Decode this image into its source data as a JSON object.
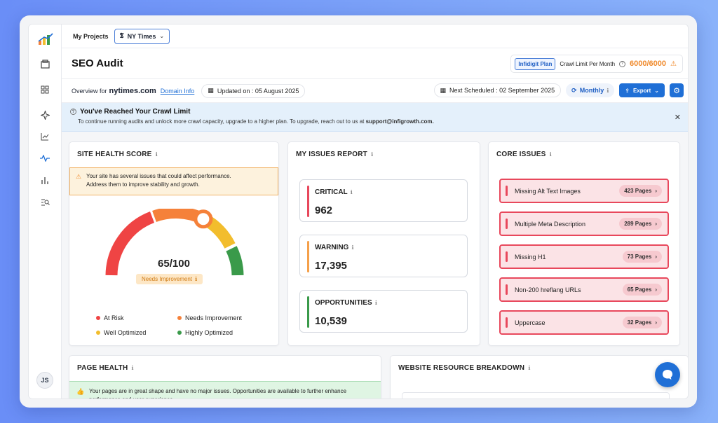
{
  "topbar": {
    "my_projects": "My Projects",
    "project_name": "NY Times"
  },
  "header": {
    "title": "SEO Audit",
    "plan": "Infidigit Plan",
    "crawl_limit_label": "Crawl Limit Per Month",
    "crawl_limit_value": "6000/6000"
  },
  "overview": {
    "prefix": "Overview for",
    "domain": "nytimes.com",
    "domain_info_link": "Domain Info",
    "updated": "Updated on : 05 August 2025",
    "next_scheduled": "Next Scheduled : 02 September 2025",
    "frequency": "Monthly",
    "export_label": "Export"
  },
  "alert": {
    "title": "You've Reached Your Crawl Limit",
    "message": "To continue running audits and unlock more crawl capacity, upgrade to a higher plan. To upgrade, reach out to us at",
    "email": "support@infigrowth.com."
  },
  "site_health": {
    "title": "SITE HEALTH SCORE",
    "warning_line1": "Your site has several issues that could affect performance.",
    "warning_line2": "Address them to improve stability and growth.",
    "score": "65/100",
    "score_value": 65,
    "score_max": 100,
    "status": "Needs Improvement",
    "legend": [
      {
        "label": "At Risk",
        "color": "#ef4444"
      },
      {
        "label": "Needs Improvement",
        "color": "#f5813a"
      },
      {
        "label": "Well Optimized",
        "color": "#f2bd2d"
      },
      {
        "label": "Highly Optimized",
        "color": "#3a9a4a"
      }
    ]
  },
  "issues_report": {
    "title": "MY ISSUES REPORT",
    "items": [
      {
        "label": "CRITICAL",
        "value": "962",
        "color": "#e8485c"
      },
      {
        "label": "WARNING",
        "value": "17,395",
        "color": "#f5a04a"
      },
      {
        "label": "OPPORTUNITIES",
        "value": "10,539",
        "color": "#3a9a4a"
      }
    ]
  },
  "core_issues": {
    "title": "CORE ISSUES",
    "items": [
      {
        "label": "Missing Alt Text Images",
        "count": "423 Pages"
      },
      {
        "label": "Multiple Meta Description",
        "count": "289 Pages"
      },
      {
        "label": "Missing H1",
        "count": "73 Pages"
      },
      {
        "label": "Non-200 hreflang URLs",
        "count": "65 Pages"
      },
      {
        "label": "Uppercase",
        "count": "32 Pages"
      }
    ]
  },
  "page_health": {
    "title": "PAGE HEALTH",
    "message": "Your pages are in great shape and have no major issues. Opportunities are available to further enhance performance and user experience."
  },
  "resource_breakdown": {
    "title": "WEBSITE RESOURCE BREAKDOWN"
  },
  "user": {
    "initials": "JS"
  }
}
